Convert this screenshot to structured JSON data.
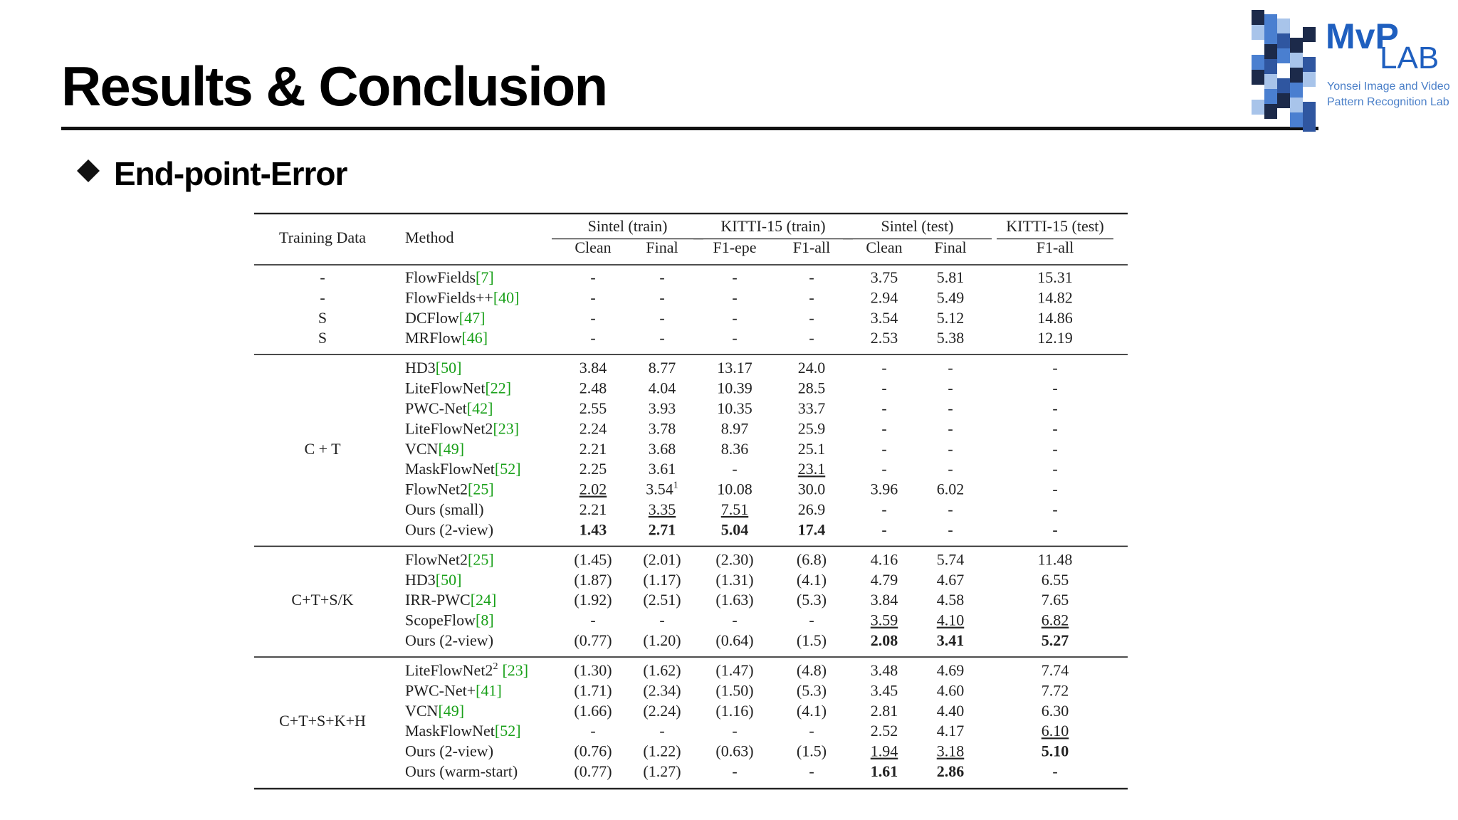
{
  "header": {
    "title": "Results & Conclusion",
    "subtitle": "End-point-Error"
  },
  "logo": {
    "mark": "MvP",
    "lab": "LAB",
    "line1": "Yonsei Image and Video",
    "line2": "Pattern Recognition Lab"
  },
  "table": {
    "columns": [
      "Training Data",
      "Method"
    ],
    "column_groups": [
      {
        "label": "Sintel (train)",
        "cols": [
          "Clean",
          "Final"
        ]
      },
      {
        "label": "KITTI-15 (train)",
        "cols": [
          "F1-epe",
          "F1-all"
        ]
      },
      {
        "label": "Sintel (test)",
        "cols": [
          "Clean",
          "Final"
        ]
      },
      {
        "label": "KITTI-15 (test)",
        "cols": [
          "F1-all"
        ]
      }
    ],
    "groups": [
      {
        "training": null,
        "rows": [
          {
            "training": "-",
            "method": {
              "name": "FlowFields",
              "ref": "[7]"
            },
            "cells": [
              "-",
              "-",
              "-",
              "-",
              "3.75",
              "5.81",
              "15.31"
            ]
          },
          {
            "training": "-",
            "method": {
              "name": "FlowFields++",
              "ref": "[40]"
            },
            "cells": [
              "-",
              "-",
              "-",
              "-",
              "2.94",
              "5.49",
              "14.82"
            ]
          },
          {
            "training": "S",
            "method": {
              "name": "DCFlow",
              "ref": "[47]"
            },
            "cells": [
              "-",
              "-",
              "-",
              "-",
              "3.54",
              "5.12",
              "14.86"
            ]
          },
          {
            "training": "S",
            "method": {
              "name": "MRFlow",
              "ref": "[46]"
            },
            "cells": [
              "-",
              "-",
              "-",
              "-",
              "2.53",
              "5.38",
              "12.19"
            ]
          }
        ]
      },
      {
        "training": "C + T",
        "rows": [
          {
            "method": {
              "name": "HD3",
              "ref": "[50]"
            },
            "cells": [
              "3.84",
              "8.77",
              "13.17",
              "24.0",
              "-",
              "-",
              "-"
            ]
          },
          {
            "method": {
              "name": "LiteFlowNet",
              "ref": "[22]"
            },
            "cells": [
              "2.48",
              "4.04",
              "10.39",
              "28.5",
              "-",
              "-",
              "-"
            ]
          },
          {
            "method": {
              "name": "PWC-Net",
              "ref": "[42]"
            },
            "cells": [
              "2.55",
              "3.93",
              "10.35",
              "33.7",
              "-",
              "-",
              "-"
            ]
          },
          {
            "method": {
              "name": "LiteFlowNet2",
              "ref": "[23]"
            },
            "cells": [
              "2.24",
              "3.78",
              "8.97",
              "25.9",
              "-",
              "-",
              "-"
            ]
          },
          {
            "method": {
              "name": "VCN",
              "ref": "[49]"
            },
            "cells": [
              "2.21",
              "3.68",
              "8.36",
              "25.1",
              "-",
              "-",
              "-"
            ]
          },
          {
            "method": {
              "name": "MaskFlowNet",
              "ref": "[52]"
            },
            "cells": [
              "2.25",
              "3.61",
              "-",
              {
                "text": "23.1",
                "style": "underline"
              },
              "-",
              "-",
              "-"
            ]
          },
          {
            "method": {
              "name": "FlowNet2",
              "ref": "[25]"
            },
            "cells": [
              {
                "text": "2.02",
                "style": "underline"
              },
              {
                "text": "3.54",
                "sup": "1"
              },
              "10.08",
              "30.0",
              "3.96",
              "6.02",
              "-"
            ]
          },
          {
            "method": {
              "name": "Ours (small)"
            },
            "cells": [
              "2.21",
              {
                "text": "3.35",
                "style": "underline"
              },
              {
                "text": "7.51",
                "style": "underline"
              },
              "26.9",
              "-",
              "-",
              "-"
            ]
          },
          {
            "method": {
              "name": "Ours (2-view)"
            },
            "cells": [
              {
                "text": "1.43",
                "style": "bold"
              },
              {
                "text": "2.71",
                "style": "bold"
              },
              {
                "text": "5.04",
                "style": "bold"
              },
              {
                "text": "17.4",
                "style": "bold"
              },
              "-",
              "-",
              "-"
            ]
          }
        ]
      },
      {
        "training": "C+T+S/K",
        "rows": [
          {
            "method": {
              "name": "FlowNet2",
              "ref": "[25]"
            },
            "cells": [
              "(1.45)",
              "(2.01)",
              "(2.30)",
              "(6.8)",
              "4.16",
              "5.74",
              "11.48"
            ]
          },
          {
            "method": {
              "name": "HD3",
              "ref": "[50]"
            },
            "cells": [
              "(1.87)",
              "(1.17)",
              "(1.31)",
              "(4.1)",
              "4.79",
              "4.67",
              "6.55"
            ]
          },
          {
            "method": {
              "name": "IRR-PWC",
              "ref": "[24]"
            },
            "cells": [
              "(1.92)",
              "(2.51)",
              "(1.63)",
              "(5.3)",
              "3.84",
              "4.58",
              "7.65"
            ]
          },
          {
            "method": {
              "name": "ScopeFlow",
              "ref": "[8]"
            },
            "cells": [
              "-",
              "-",
              "-",
              "-",
              {
                "text": "3.59",
                "style": "underline"
              },
              {
                "text": "4.10",
                "style": "underline"
              },
              {
                "text": "6.82",
                "style": "underline"
              }
            ]
          },
          {
            "method": {
              "name": "Ours (2-view)"
            },
            "cells": [
              "(0.77)",
              "(1.20)",
              "(0.64)",
              "(1.5)",
              {
                "text": "2.08",
                "style": "bold"
              },
              {
                "text": "3.41",
                "style": "bold"
              },
              {
                "text": "5.27",
                "style": "bold"
              }
            ]
          }
        ]
      },
      {
        "training": "C+T+S+K+H",
        "rows": [
          {
            "method": {
              "name": "LiteFlowNet2",
              "sup": "2",
              "ref": "[23]"
            },
            "cells": [
              "(1.30)",
              "(1.62)",
              "(1.47)",
              "(4.8)",
              "3.48",
              "4.69",
              "7.74"
            ]
          },
          {
            "method": {
              "name": "PWC-Net+",
              "ref": "[41]"
            },
            "cells": [
              "(1.71)",
              "(2.34)",
              "(1.50)",
              "(5.3)",
              "3.45",
              "4.60",
              "7.72"
            ]
          },
          {
            "method": {
              "name": "VCN",
              "ref": "[49]"
            },
            "cells": [
              "(1.66)",
              "(2.24)",
              "(1.16)",
              "(4.1)",
              "2.81",
              "4.40",
              "6.30"
            ]
          },
          {
            "method": {
              "name": "MaskFlowNet",
              "ref": "[52]"
            },
            "cells": [
              "-",
              "-",
              "-",
              "-",
              "2.52",
              "4.17",
              {
                "text": "6.10",
                "style": "underline"
              }
            ]
          },
          {
            "method": {
              "name": "Ours (2-view)"
            },
            "cells": [
              "(0.76)",
              "(1.22)",
              "(0.63)",
              "(1.5)",
              {
                "text": "1.94",
                "style": "underline"
              },
              {
                "text": "3.18",
                "style": "underline"
              },
              {
                "text": "5.10",
                "style": "bold"
              }
            ]
          },
          {
            "method": {
              "name": "Ours (warm-start)"
            },
            "cells": [
              "(0.77)",
              "(1.27)",
              "-",
              "-",
              {
                "text": "1.61",
                "style": "bold"
              },
              {
                "text": "2.86",
                "style": "bold"
              },
              "-"
            ]
          }
        ]
      }
    ]
  }
}
